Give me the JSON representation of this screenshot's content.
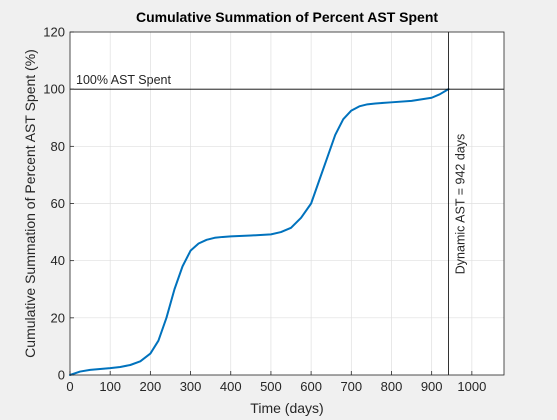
{
  "chart_data": {
    "type": "line",
    "title": "Cumulative Summation of Percent AST Spent",
    "xlabel": "Time (days)",
    "ylabel": "Cumulative Summation of Percent AST Spent (%)",
    "xlim": [
      0,
      1080
    ],
    "ylim": [
      0,
      120
    ],
    "xticks": [
      0,
      100,
      200,
      300,
      400,
      500,
      600,
      700,
      800,
      900,
      1000
    ],
    "yticks": [
      0,
      20,
      40,
      60,
      80,
      100,
      120
    ],
    "grid": true,
    "legend": "none",
    "series": [
      {
        "color": "#0072bd",
        "x": [
          0,
          25,
          50,
          75,
          100,
          125,
          150,
          175,
          200,
          220,
          240,
          260,
          280,
          300,
          320,
          340,
          360,
          380,
          400,
          450,
          500,
          525,
          550,
          575,
          600,
          620,
          640,
          660,
          680,
          700,
          720,
          740,
          760,
          780,
          800,
          850,
          900,
          920,
          942
        ],
        "y": [
          0,
          1.2,
          1.8,
          2.1,
          2.4,
          2.8,
          3.5,
          4.8,
          7.5,
          12,
          20,
          30,
          38,
          43.5,
          46,
          47.3,
          48,
          48.3,
          48.5,
          48.8,
          49.2,
          50,
          51.5,
          55,
          60,
          68,
          76,
          84,
          89.5,
          92.5,
          94,
          94.7,
          95,
          95.2,
          95.4,
          95.9,
          97,
          98.2,
          100
        ]
      }
    ],
    "annotations": [
      {
        "type": "hline",
        "y": 100,
        "text": "100% AST Spent",
        "color": "#000000"
      },
      {
        "type": "vline",
        "x": 942,
        "text": "Dynamic AST = 942 days",
        "color": "#000000"
      }
    ]
  }
}
